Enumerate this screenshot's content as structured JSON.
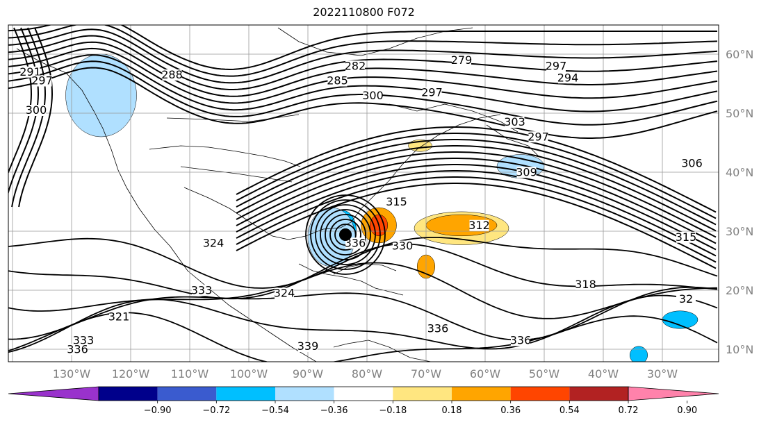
{
  "title": "2022110800 F072",
  "lon_labels": [
    "130°W",
    "120°W",
    "110°W",
    "100°W",
    "90°W",
    "80°W",
    "70°W",
    "60°W",
    "50°W",
    "40°W",
    "30°W"
  ],
  "lat_labels": [
    "60°N",
    "50°N",
    "40°N",
    "30°N",
    "20°N",
    "10°N"
  ],
  "colorbar": {
    "ticks": [
      "−0.90",
      "−0.72",
      "−0.54",
      "−0.36",
      "−0.18",
      "0.18",
      "0.36",
      "0.54",
      "0.72",
      "0.90"
    ],
    "colors": [
      "#9932cc",
      "#00008b",
      "#3a5bcf",
      "#00bfff",
      "#b0e0ff",
      "#ffffff",
      "#ffe680",
      "#ffa500",
      "#ff4500",
      "#b22222",
      "#ff82ab"
    ]
  },
  "contour_labels": [
    {
      "text": "291",
      "lon": -137,
      "lat": 56.5
    },
    {
      "text": "297",
      "lon": -135,
      "lat": 55
    },
    {
      "text": "300",
      "lon": -136,
      "lat": 50
    },
    {
      "text": "288",
      "lon": -113,
      "lat": 56
    },
    {
      "text": "282",
      "lon": -82,
      "lat": 57.5
    },
    {
      "text": "285",
      "lon": -85,
      "lat": 55
    },
    {
      "text": "279",
      "lon": -64,
      "lat": 58.5
    },
    {
      "text": "300",
      "lon": -79,
      "lat": 52.5
    },
    {
      "text": "297",
      "lon": -69,
      "lat": 53
    },
    {
      "text": "303",
      "lon": -55,
      "lat": 48
    },
    {
      "text": "297",
      "lon": -48,
      "lat": 57.5
    },
    {
      "text": "294",
      "lon": -46,
      "lat": 55.5
    },
    {
      "text": "297",
      "lon": -51,
      "lat": 45.5
    },
    {
      "text": "309",
      "lon": -53,
      "lat": 39.5
    },
    {
      "text": "306",
      "lon": -25,
      "lat": 41
    },
    {
      "text": "315",
      "lon": -75,
      "lat": 34.5
    },
    {
      "text": "312",
      "lon": -61,
      "lat": 30.5
    },
    {
      "text": "315",
      "lon": -26,
      "lat": 28.5
    },
    {
      "text": "330",
      "lon": -74,
      "lat": 27
    },
    {
      "text": "318",
      "lon": -43,
      "lat": 20.5
    },
    {
      "text": "336",
      "lon": -82,
      "lat": 27.5
    },
    {
      "text": "324",
      "lon": -106,
      "lat": 27.5
    },
    {
      "text": "333",
      "lon": -108,
      "lat": 19.5
    },
    {
      "text": "324",
      "lon": -94,
      "lat": 19
    },
    {
      "text": "321",
      "lon": -122,
      "lat": 15
    },
    {
      "text": "333",
      "lon": -128,
      "lat": 11
    },
    {
      "text": "336",
      "lon": -129,
      "lat": 9.5
    },
    {
      "text": "339",
      "lon": -90,
      "lat": 10
    },
    {
      "text": "336",
      "lon": -68,
      "lat": 13
    },
    {
      "text": "336",
      "lon": -54,
      "lat": 11
    },
    {
      "text": "32",
      "lon": -26,
      "lat": 18
    }
  ],
  "shaded_regions": [
    {
      "level": "-0.36",
      "lon": -124,
      "lat": 54,
      "rx": 4,
      "ry": 5
    },
    {
      "level": "-0.18",
      "lon": -125,
      "lat": 53,
      "rx": 6,
      "ry": 7
    },
    {
      "level": "-0.36",
      "lon": -84,
      "lat": 30,
      "rx": 2.2,
      "ry": 3.5
    },
    {
      "level": "-0.18",
      "lon": -86,
      "lat": 29,
      "rx": 4,
      "ry": 5
    },
    {
      "level": "0.36",
      "lon": -78,
      "lat": 31,
      "rx": 3,
      "ry": 3
    },
    {
      "level": "0.54",
      "lon": -78,
      "lat": 31,
      "rx": 1.5,
      "ry": 1.8
    },
    {
      "level": "0.18",
      "lon": -64,
      "lat": 30.5,
      "rx": 8,
      "ry": 2.8
    },
    {
      "level": "0.36",
      "lon": -64,
      "lat": 31,
      "rx": 6,
      "ry": 1.8
    },
    {
      "level": "0.36",
      "lon": -70,
      "lat": 24,
      "rx": 1.5,
      "ry": 2
    },
    {
      "level": "-0.18",
      "lon": -54,
      "lat": 41,
      "rx": 4,
      "ry": 2
    },
    {
      "level": "-0.36",
      "lon": -27,
      "lat": 15,
      "rx": 3,
      "ry": 1.5
    },
    {
      "level": "-0.36",
      "lon": -34,
      "lat": 9,
      "rx": 1.5,
      "ry": 1.5
    },
    {
      "level": "0.18",
      "lon": -71,
      "lat": 44.5,
      "rx": 2,
      "ry": 1
    }
  ]
}
